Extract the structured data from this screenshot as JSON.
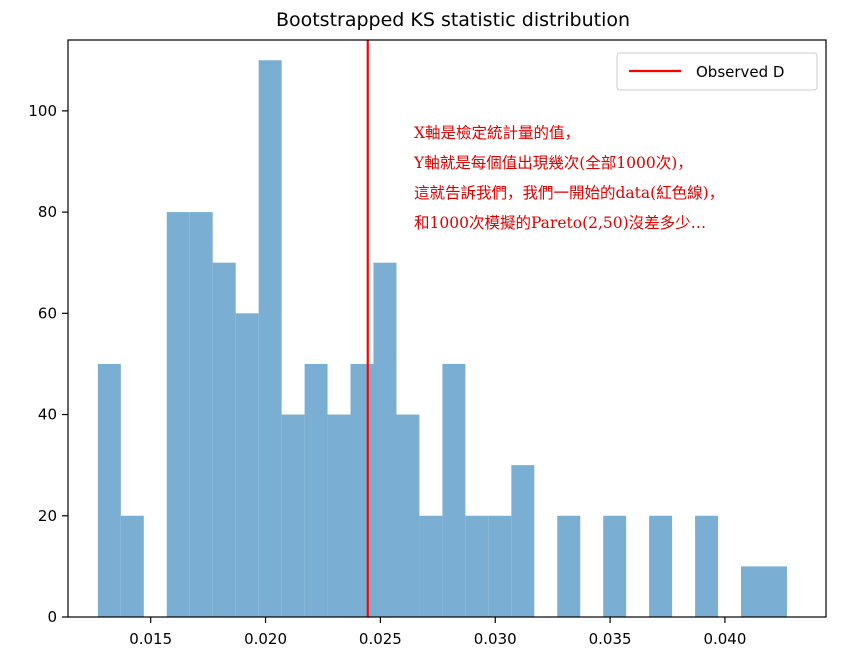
{
  "chart_data": {
    "type": "bar",
    "title": "Bootstrapped KS statistic distribution",
    "xlabel": "",
    "ylabel": "",
    "xlim": [
      0.0114,
      0.0444
    ],
    "ylim": [
      0,
      114
    ],
    "grid": false,
    "x_ticks": [
      0.015,
      0.02,
      0.025,
      0.03,
      0.035,
      0.04
    ],
    "x_tick_labels": [
      "0.015",
      "0.020",
      "0.025",
      "0.030",
      "0.035",
      "0.040"
    ],
    "y_ticks": [
      0,
      20,
      40,
      60,
      80,
      100
    ],
    "y_tick_labels": [
      "0",
      "20",
      "40",
      "60",
      "80",
      "100"
    ],
    "bars": [
      {
        "x0": 0.0127,
        "x1": 0.0137,
        "value": 50
      },
      {
        "x0": 0.0137,
        "x1": 0.0147,
        "value": 20
      },
      {
        "x0": 0.0147,
        "x1": 0.0157,
        "value": 0
      },
      {
        "x0": 0.0157,
        "x1": 0.0167,
        "value": 80
      },
      {
        "x0": 0.0167,
        "x1": 0.0177,
        "value": 80
      },
      {
        "x0": 0.0177,
        "x1": 0.0187,
        "value": 70
      },
      {
        "x0": 0.0187,
        "x1": 0.0197,
        "value": 60
      },
      {
        "x0": 0.0197,
        "x1": 0.0207,
        "value": 110
      },
      {
        "x0": 0.0207,
        "x1": 0.0217,
        "value": 40
      },
      {
        "x0": 0.0217,
        "x1": 0.0227,
        "value": 50
      },
      {
        "x0": 0.0227,
        "x1": 0.0237,
        "value": 40
      },
      {
        "x0": 0.0237,
        "x1": 0.0247,
        "value": 50
      },
      {
        "x0": 0.0247,
        "x1": 0.0257,
        "value": 70
      },
      {
        "x0": 0.0257,
        "x1": 0.0267,
        "value": 40
      },
      {
        "x0": 0.0267,
        "x1": 0.0277,
        "value": 20
      },
      {
        "x0": 0.0277,
        "x1": 0.0287,
        "value": 50
      },
      {
        "x0": 0.0287,
        "x1": 0.0297,
        "value": 20
      },
      {
        "x0": 0.0297,
        "x1": 0.0307,
        "value": 20
      },
      {
        "x0": 0.0307,
        "x1": 0.0317,
        "value": 30
      },
      {
        "x0": 0.0317,
        "x1": 0.0327,
        "value": 0
      },
      {
        "x0": 0.0327,
        "x1": 0.0337,
        "value": 20
      },
      {
        "x0": 0.0337,
        "x1": 0.0347,
        "value": 0
      },
      {
        "x0": 0.0347,
        "x1": 0.0357,
        "value": 20
      },
      {
        "x0": 0.0357,
        "x1": 0.0367,
        "value": 0
      },
      {
        "x0": 0.0367,
        "x1": 0.0377,
        "value": 20
      },
      {
        "x0": 0.0377,
        "x1": 0.0387,
        "value": 0
      },
      {
        "x0": 0.0387,
        "x1": 0.0397,
        "value": 20
      },
      {
        "x0": 0.0397,
        "x1": 0.0407,
        "value": 0
      },
      {
        "x0": 0.0407,
        "x1": 0.0417,
        "value": 10
      },
      {
        "x0": 0.0417,
        "x1": 0.0427,
        "value": 10
      }
    ],
    "observed_line": {
      "name": "Observed D",
      "x": 0.02445,
      "color": "#ff0000"
    },
    "bar_color": "#7aaed3",
    "legend": {
      "position": "top-right",
      "entries": [
        "Observed D"
      ]
    },
    "annotation": [
      "X軸是檢定統計量的值，",
      "Y軸就是每個值出現幾次(全部1000次)，",
      "這就告訴我們，我們一開始的data(紅色線)，",
      "和1000次模擬的Pareto(2,50)沒差多少…"
    ],
    "annotation_color": "#e00000"
  }
}
